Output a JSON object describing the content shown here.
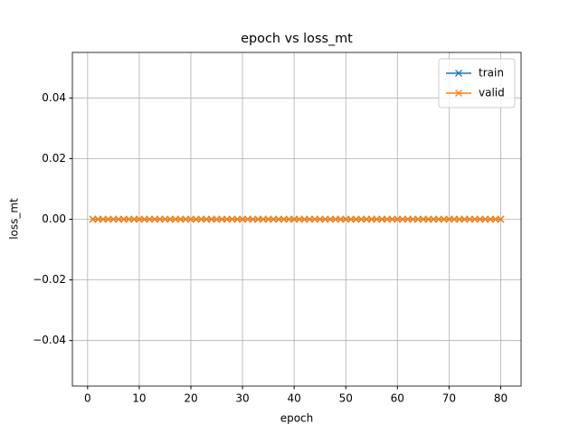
{
  "chart_data": {
    "type": "line",
    "title": "epoch vs loss_mt",
    "x_label": "epoch",
    "y_label": "loss_mt",
    "x": [
      1,
      2,
      3,
      4,
      5,
      6,
      7,
      8,
      9,
      10,
      11,
      12,
      13,
      14,
      15,
      16,
      17,
      18,
      19,
      20,
      21,
      22,
      23,
      24,
      25,
      26,
      27,
      28,
      29,
      30,
      31,
      32,
      33,
      34,
      35,
      36,
      37,
      38,
      39,
      40,
      41,
      42,
      43,
      44,
      45,
      46,
      47,
      48,
      49,
      50,
      51,
      52,
      53,
      54,
      55,
      56,
      57,
      58,
      59,
      60,
      61,
      62,
      63,
      64,
      65,
      66,
      67,
      68,
      69,
      70,
      71,
      72,
      73,
      74,
      75,
      76,
      77,
      78,
      79,
      80
    ],
    "series": [
      {
        "name": "train",
        "color": "#1f77b4",
        "marker": "x",
        "values": [
          0,
          0,
          0,
          0,
          0,
          0,
          0,
          0,
          0,
          0,
          0,
          0,
          0,
          0,
          0,
          0,
          0,
          0,
          0,
          0,
          0,
          0,
          0,
          0,
          0,
          0,
          0,
          0,
          0,
          0,
          0,
          0,
          0,
          0,
          0,
          0,
          0,
          0,
          0,
          0,
          0,
          0,
          0,
          0,
          0,
          0,
          0,
          0,
          0,
          0,
          0,
          0,
          0,
          0,
          0,
          0,
          0,
          0,
          0,
          0,
          0,
          0,
          0,
          0,
          0,
          0,
          0,
          0,
          0,
          0,
          0,
          0,
          0,
          0,
          0,
          0,
          0,
          0,
          0,
          0
        ]
      },
      {
        "name": "valid",
        "color": "#ff7f0e",
        "marker": "x",
        "values": [
          0,
          0,
          0,
          0,
          0,
          0,
          0,
          0,
          0,
          0,
          0,
          0,
          0,
          0,
          0,
          0,
          0,
          0,
          0,
          0,
          0,
          0,
          0,
          0,
          0,
          0,
          0,
          0,
          0,
          0,
          0,
          0,
          0,
          0,
          0,
          0,
          0,
          0,
          0,
          0,
          0,
          0,
          0,
          0,
          0,
          0,
          0,
          0,
          0,
          0,
          0,
          0,
          0,
          0,
          0,
          0,
          0,
          0,
          0,
          0,
          0,
          0,
          0,
          0,
          0,
          0,
          0,
          0,
          0,
          0,
          0,
          0,
          0,
          0,
          0,
          0,
          0,
          0,
          0,
          0
        ]
      }
    ],
    "xlim": [
      -2.95,
      83.95
    ],
    "xticks": [
      0,
      10,
      20,
      30,
      40,
      50,
      60,
      70,
      80
    ],
    "ylim": [
      -0.055,
      0.055
    ],
    "yticks": [
      {
        "value": -0.04,
        "label": "−0.04"
      },
      {
        "value": -0.02,
        "label": "−0.02"
      },
      {
        "value": 0,
        "label": "0.00"
      },
      0.02,
      0.04
    ],
    "grid": true,
    "legend": "upper-right"
  }
}
